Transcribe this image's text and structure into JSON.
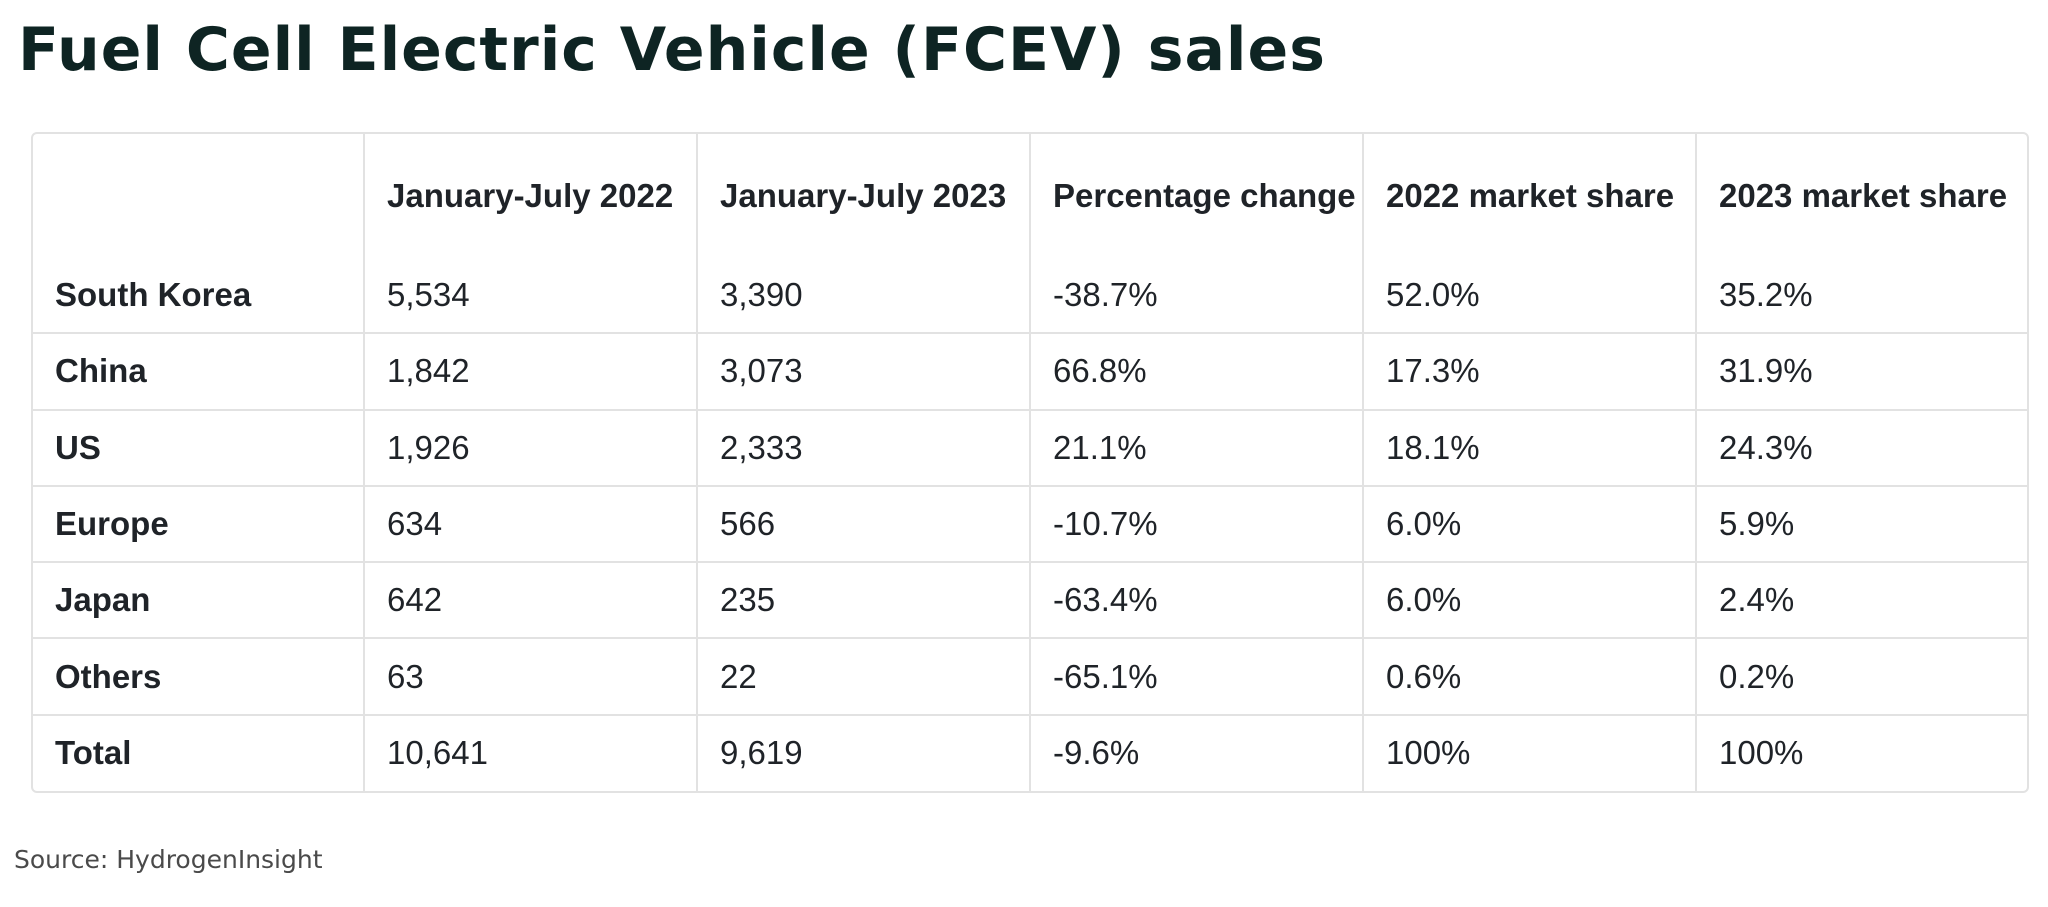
{
  "title": "Fuel Cell Electric Vehicle (FCEV) sales",
  "source": "Source: HydrogenInsight",
  "chart_data": {
    "type": "table",
    "title": "Fuel Cell Electric Vehicle (FCEV) sales",
    "columns": [
      "",
      "January-July 2022",
      "January-July 2023",
      "Percentage change",
      "2022 market share",
      "2023 market share"
    ],
    "rows": [
      [
        "South Korea",
        "5,534",
        "3,390",
        "-38.7%",
        "52.0%",
        "35.2%"
      ],
      [
        "China",
        "1,842",
        "3,073",
        "66.8%",
        "17.3%",
        "31.9%"
      ],
      [
        "US",
        "1,926",
        "2,333",
        "21.1%",
        "18.1%",
        "24.3%"
      ],
      [
        "Europe",
        "634",
        "566",
        "-10.7%",
        "6.0%",
        "5.9%"
      ],
      [
        "Japan",
        "642",
        "235",
        "-63.4%",
        "6.0%",
        "2.4%"
      ],
      [
        "Others",
        "63",
        "22",
        "-65.1%",
        "0.6%",
        "0.2%"
      ],
      [
        "Total",
        "10,641",
        "9,619",
        "-9.6%",
        "100%",
        "100%"
      ]
    ]
  },
  "colors": {
    "title": "#0e2423",
    "text": "#1f2328",
    "border": "#e2e2e2",
    "source": "#4a4a4a"
  }
}
